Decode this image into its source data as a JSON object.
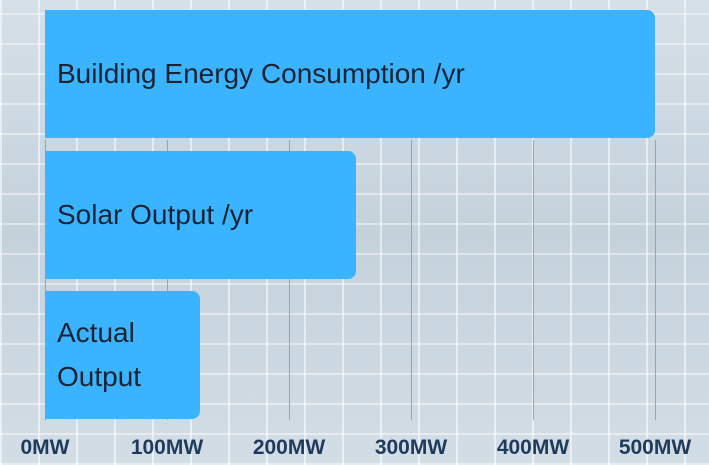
{
  "chart_data": {
    "type": "bar",
    "orientation": "horizontal",
    "categories": [
      "Building  Energy Consumption /yr",
      "Solar Output /yr",
      "Actual Output"
    ],
    "values": [
      500,
      255,
      127
    ],
    "color": "#3ab4ff",
    "xlim": [
      0,
      500
    ],
    "xticks": [
      {
        "value": 0,
        "label": "0MW"
      },
      {
        "value": 100,
        "label": "100MW"
      },
      {
        "value": 200,
        "label": "200MW"
      },
      {
        "value": 300,
        "label": "300MW"
      },
      {
        "value": 400,
        "label": "400MW"
      },
      {
        "value": 500,
        "label": "500MW"
      }
    ],
    "grid": true
  }
}
